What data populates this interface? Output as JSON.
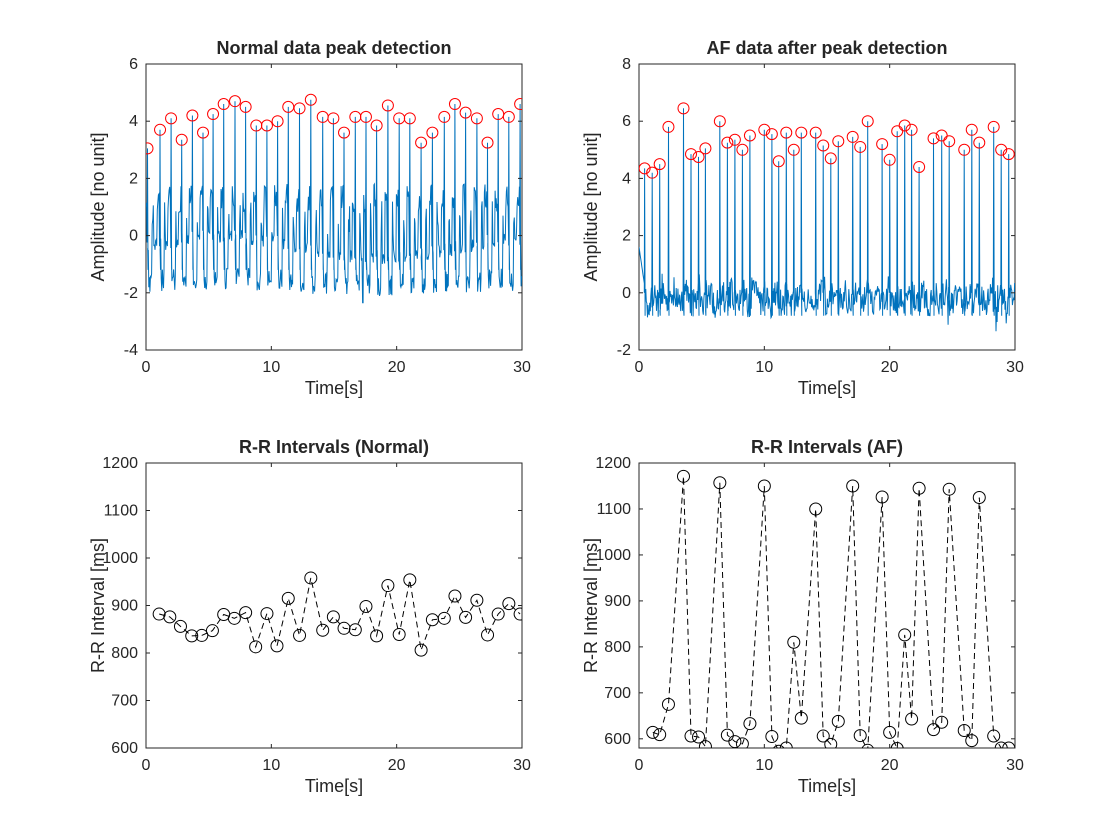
{
  "chart_data": [
    {
      "type": "line",
      "title": "Normal data peak detection",
      "xlabel": "Time[s]",
      "ylabel": "Amplitude [no unit]",
      "xlim": [
        0,
        30
      ],
      "ylim": [
        -4,
        6
      ],
      "xticks": [
        0,
        10,
        20,
        30
      ],
      "yticks": [
        -4,
        -2,
        0,
        2,
        4,
        6
      ],
      "grid": false,
      "signal_color": "#0072bd",
      "peak_marker_color": "#ff0000",
      "series": [
        {
          "kind": "peaks",
          "x": [
            0.12,
            1.12,
            2.0,
            2.85,
            3.7,
            4.55,
            5.35,
            6.2,
            7.1,
            7.95,
            8.8,
            9.65,
            10.5,
            11.35,
            12.25,
            13.15,
            14.1,
            14.95,
            15.8,
            16.7,
            17.55,
            18.4,
            19.3,
            20.2,
            21.05,
            21.95,
            22.85,
            23.8,
            24.65,
            25.5,
            26.4,
            27.25,
            28.1,
            28.95,
            29.85
          ],
          "y": [
            3.05,
            3.7,
            4.1,
            3.35,
            4.2,
            3.6,
            4.25,
            4.6,
            4.7,
            4.5,
            3.85,
            3.85,
            4.0,
            4.5,
            4.45,
            4.75,
            4.15,
            4.1,
            3.6,
            4.15,
            4.15,
            3.85,
            4.55,
            4.1,
            4.1,
            3.25,
            3.6,
            4.15,
            4.6,
            4.3,
            4.1,
            3.25,
            4.25,
            4.15,
            4.6
          ]
        }
      ]
    },
    {
      "type": "line",
      "title": "AF data after peak detection",
      "xlabel": "Time[s]",
      "ylabel": "Amplitude [no unit]",
      "xlim": [
        0,
        30
      ],
      "ylim": [
        -2,
        8
      ],
      "xticks": [
        0,
        10,
        20,
        30
      ],
      "yticks": [
        -2,
        0,
        2,
        4,
        6,
        8
      ],
      "grid": false,
      "signal_color": "#0072bd",
      "peak_marker_color": "#ff0000",
      "series": [
        {
          "kind": "peaks",
          "x": [
            0.45,
            1.05,
            1.65,
            2.35,
            3.55,
            4.15,
            4.75,
            5.3,
            6.45,
            7.05,
            7.65,
            8.25,
            8.85,
            10.0,
            10.6,
            11.15,
            11.75,
            12.35,
            12.95,
            14.1,
            14.7,
            15.3,
            15.9,
            17.05,
            17.65,
            18.25,
            19.4,
            20.0,
            20.6,
            21.2,
            21.75,
            22.35,
            23.5,
            24.15,
            24.75,
            25.95,
            26.55,
            27.15,
            28.3,
            28.9,
            29.5
          ],
          "y": [
            4.35,
            4.2,
            4.5,
            5.8,
            6.45,
            4.85,
            4.75,
            5.05,
            6.0,
            5.25,
            5.35,
            5.0,
            5.5,
            5.7,
            5.55,
            4.6,
            5.6,
            5.0,
            5.6,
            5.6,
            5.15,
            4.7,
            5.3,
            5.45,
            5.1,
            6.0,
            5.2,
            4.65,
            5.65,
            5.85,
            5.7,
            4.4,
            5.4,
            5.5,
            5.3,
            5.0,
            5.7,
            5.25,
            5.8,
            5.0,
            4.85
          ]
        }
      ]
    },
    {
      "type": "line",
      "title": "R-R Intervals (Normal)",
      "xlabel": "Time[s]",
      "ylabel": "R-R Interval [ms]",
      "xlim": [
        0,
        30
      ],
      "ylim": [
        600,
        1200
      ],
      "xticks": [
        0,
        10,
        20,
        30
      ],
      "yticks": [
        600,
        700,
        800,
        900,
        1000,
        1100,
        1200
      ],
      "grid": false,
      "line_style": "dashed",
      "marker": "open-circle",
      "series": [
        {
          "x": [
            1.05,
            1.9,
            2.75,
            3.65,
            4.45,
            5.3,
            6.2,
            7.05,
            7.95,
            8.75,
            9.65,
            10.45,
            11.35,
            12.25,
            13.15,
            14.1,
            14.95,
            15.8,
            16.7,
            17.55,
            18.4,
            19.3,
            20.2,
            21.05,
            21.95,
            22.85,
            23.8,
            24.65,
            25.5,
            26.4,
            27.25,
            28.1,
            28.95,
            29.85
          ],
          "y": [
            882,
            876,
            856,
            836,
            837,
            847,
            881,
            873,
            885,
            813,
            883,
            815,
            915,
            837,
            958,
            848,
            876,
            852,
            849,
            898,
            836,
            942,
            839,
            954,
            806,
            870,
            873,
            920,
            875,
            911,
            838,
            882,
            904,
            882
          ]
        }
      ]
    },
    {
      "type": "line",
      "title": "R-R Intervals (AF)",
      "xlabel": "Time[s]",
      "ylabel": "R-R Interval [ms]",
      "xlim": [
        0,
        30
      ],
      "ylim": [
        580,
        1200
      ],
      "xticks": [
        0,
        10,
        20,
        30
      ],
      "yticks": [
        600,
        700,
        800,
        900,
        1000,
        1100,
        1200
      ],
      "grid": false,
      "line_style": "dashed",
      "marker": "open-circle",
      "series": [
        {
          "x": [
            1.1,
            1.65,
            2.35,
            3.55,
            4.15,
            4.75,
            5.3,
            6.45,
            7.05,
            7.65,
            8.25,
            8.85,
            10.0,
            10.6,
            11.15,
            11.75,
            12.35,
            12.95,
            14.1,
            14.7,
            15.3,
            15.9,
            17.05,
            17.65,
            18.25,
            19.4,
            20.0,
            20.6,
            21.2,
            21.75,
            22.35,
            23.5,
            24.15,
            24.75,
            25.95,
            26.55,
            27.15,
            28.3,
            28.9,
            29.5
          ],
          "y": [
            614,
            609,
            675,
            1171,
            606,
            604,
            583,
            1157,
            608,
            594,
            589,
            633,
            1150,
            605,
            573,
            580,
            810,
            645,
            1100,
            606,
            588,
            638,
            1150,
            607,
            575,
            1126,
            614,
            579,
            826,
            643,
            1145,
            620,
            636,
            1143,
            618,
            596,
            1125,
            606,
            580,
            580
          ]
        }
      ]
    }
  ]
}
